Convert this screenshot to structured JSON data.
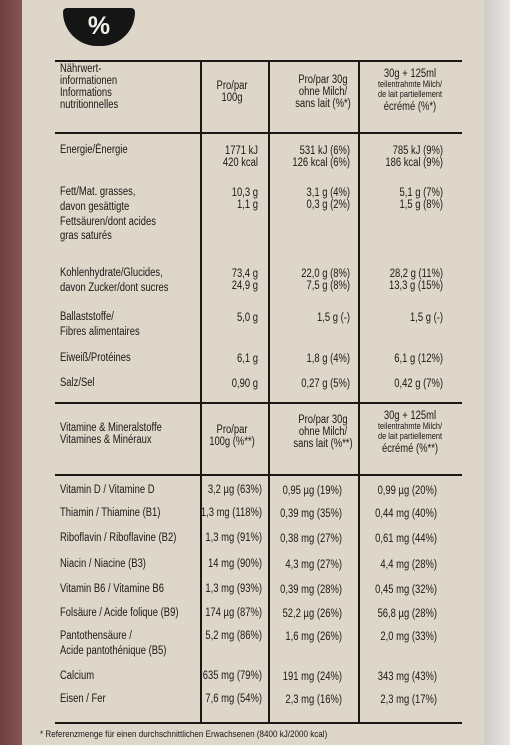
{
  "icon": {
    "name": "percent-bowl-icon",
    "symbol": "%"
  },
  "table1": {
    "header": {
      "col0": [
        "Nährwert-",
        "informationen",
        "Informations",
        "nutritionnelles"
      ],
      "col1": [
        "Pro/par",
        "100g"
      ],
      "col2": [
        "Pro/par 30g",
        "ohne Milch/",
        "sans lait (%*)"
      ],
      "col3": [
        "30g + 125ml",
        "teilentrahmte Milch/",
        "de lait partiellement",
        "écrémé (%*)"
      ]
    },
    "rows": [
      {
        "label": [
          "Energie/Énergie"
        ],
        "v1": [
          "1771 kJ",
          "420 kcal"
        ],
        "v2": [
          "531 kJ (6%)",
          "126 kcal (6%)"
        ],
        "v3": [
          "785 kJ (9%)",
          "186 kcal (9%)"
        ]
      },
      {
        "label": [
          "Fett/Mat. grasses,",
          "davon gesättigte",
          "Fettsäuren/dont acides",
          "gras saturés"
        ],
        "v1": [
          "10,3 g",
          "1,1 g"
        ],
        "v2": [
          "3,1 g (4%)",
          "0,3 g (2%)"
        ],
        "v3": [
          "5,1 g (7%)",
          "1,5 g (8%)"
        ]
      },
      {
        "label": [
          "Kohlenhydrate/Glucides,",
          "davon Zucker/dont sucres"
        ],
        "v1": [
          "73,4 g",
          "24,9 g"
        ],
        "v2": [
          "22,0 g (8%)",
          "7,5 g (8%)"
        ],
        "v3": [
          "28,2 g (11%)",
          "13,3 g (15%)"
        ]
      },
      {
        "label": [
          "Ballaststoffe/",
          "Fibres alimentaires"
        ],
        "v1": [
          "5,0 g"
        ],
        "v2": [
          "1,5 g (-)"
        ],
        "v3": [
          "1,5 g (-)"
        ]
      },
      {
        "label": [
          "Eiweiß/Protéines"
        ],
        "v1": [
          "6,1 g"
        ],
        "v2": [
          "1,8 g (4%)"
        ],
        "v3": [
          "6,1 g (12%)"
        ]
      },
      {
        "label": [
          "Salz/Sel"
        ],
        "v1": [
          "0,90 g"
        ],
        "v2": [
          "0,27 g (5%)"
        ],
        "v3": [
          "0,42 g (7%)"
        ]
      }
    ]
  },
  "table2": {
    "header": {
      "col0": [
        "Vitamine & Mineralstoffe",
        "Vitamines & Minéraux"
      ],
      "col1": [
        "Pro/par",
        "100g (%**)"
      ],
      "col2": [
        "Pro/par 30g",
        "ohne Milch/",
        "sans lait (%**)"
      ],
      "col3": [
        "30g + 125ml",
        "teilentrahmte Milch/",
        "de lait partiellement",
        "écrémé (%**)"
      ]
    },
    "rows": [
      {
        "label": [
          "Vitamin D / Vitamine D"
        ],
        "v1": [
          "3,2 µg (63%)"
        ],
        "v2": [
          "0,95 µg (19%)"
        ],
        "v3": [
          "0,99 µg (20%)"
        ]
      },
      {
        "label": [
          "Thiamin / Thiamine (B1)"
        ],
        "v1": [
          "1,3 mg (118%)"
        ],
        "v2": [
          "0,39 mg (35%)"
        ],
        "v3": [
          "0,44 mg (40%)"
        ]
      },
      {
        "label": [
          "Riboflavin / Riboflavine (B2)"
        ],
        "v1": [
          "1,3 mg (91%)"
        ],
        "v2": [
          "0,38 mg (27%)"
        ],
        "v3": [
          "0,61 mg (44%)"
        ]
      },
      {
        "label": [
          "Niacin / Niacine (B3)"
        ],
        "v1": [
          "14 mg (90%)"
        ],
        "v2": [
          "4,3 mg (27%)"
        ],
        "v3": [
          "4,4 mg (28%)"
        ]
      },
      {
        "label": [
          "Vitamin B6 / Vitamine B6"
        ],
        "v1": [
          "1,3 mg (93%)"
        ],
        "v2": [
          "0,39 mg (28%)"
        ],
        "v3": [
          "0,45 mg (32%)"
        ]
      },
      {
        "label": [
          "Folsäure / Acide folique (B9)"
        ],
        "v1": [
          "174 µg (87%)"
        ],
        "v2": [
          "52,2 µg (26%)"
        ],
        "v3": [
          "56,8 µg (28%)"
        ]
      },
      {
        "label": [
          "Pantothensäure /",
          "Acide pantothénique (B5)"
        ],
        "v1": [
          "5,2 mg (86%)"
        ],
        "v2": [
          "1,6 mg (26%)"
        ],
        "v3": [
          "2,0 mg (33%)"
        ]
      },
      {
        "label": [
          "Calcium"
        ],
        "v1": [
          "635 mg (79%)"
        ],
        "v2": [
          "191 mg (24%)"
        ],
        "v3": [
          "343 mg (43%)"
        ]
      },
      {
        "label": [
          "Eisen / Fer"
        ],
        "v1": [
          "7,6 mg (54%)"
        ],
        "v2": [
          "2,3 mg (16%)"
        ],
        "v3": [
          "2,3 mg (17%)"
        ]
      }
    ]
  },
  "footnote": "* Referenzmenge für einen durchschnittlichen Erwachsenen (8400 kJ/2000 kcal)"
}
